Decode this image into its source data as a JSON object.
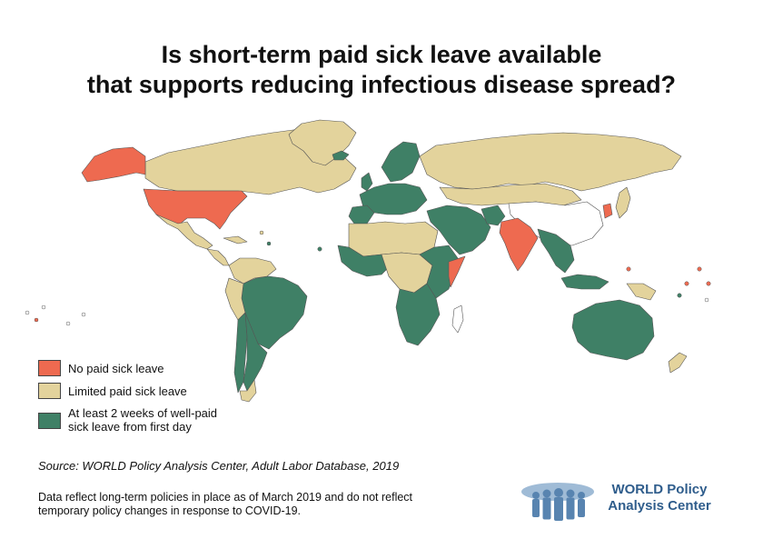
{
  "title": {
    "line1": "Is short-term paid sick leave available",
    "line2": "that supports reducing infectious disease spread?"
  },
  "categories": {
    "none": {
      "label": "No paid sick leave",
      "color": "#ee6a50"
    },
    "limited": {
      "label": "Limited paid sick leave",
      "color": "#e3d39c"
    },
    "full": {
      "label_line1": "At least 2 weeks of well-paid",
      "label_line2": "sick leave from first day",
      "color": "#3f8066"
    },
    "nodata": {
      "color": "#ffffff"
    }
  },
  "regions": {
    "none": [
      "United States",
      "Alaska",
      "India",
      "Somalia",
      "South Korea",
      "Pacific islands"
    ],
    "limited": [
      "Canada",
      "Greenland",
      "Russia",
      "Mexico",
      "Colombia",
      "Peru",
      "Bolivia",
      "Argentina (south)",
      "Iceland",
      "West Africa (part)",
      "Central Africa (part)",
      "Madagascar",
      "Mongolia",
      "Kazakhstan",
      "China (north)",
      "Papua New Guinea",
      "New Zealand"
    ],
    "full": [
      "Brazil",
      "Chile",
      "Argentina",
      "Europe",
      "Middle East",
      "East Africa",
      "Southern Africa",
      "Southeast Asia",
      "Indonesia",
      "Australia",
      "Japan"
    ]
  },
  "source": "Source: WORLD Policy Analysis Center, Adult Labor Database, 2019",
  "note": {
    "line1": "Data reflect long-term policies in place as of March 2019 and do not reflect",
    "line2": "temporary policy changes in response to COVID-19."
  },
  "logo": {
    "line1": "WORLD Policy",
    "line2": "Analysis Center",
    "color": "#2f5d8c"
  }
}
